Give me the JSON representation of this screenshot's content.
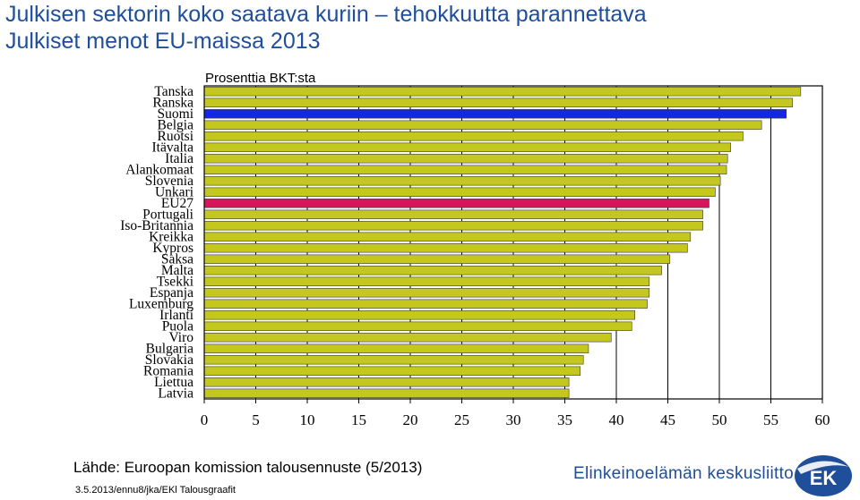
{
  "title_line1": "Julkisen sektorin koko saatava kuriin – tehokkuutta parannettava",
  "title_line2": "Julkiset menot EU-maissa 2013",
  "source": "Lähde: Euroopan komission talousennuste (5/2013)",
  "credit": "3.5.2013/ennu8/jka/EKl Talousgraafit",
  "org_name": "Elinkeinoelämän keskusliitto",
  "logo_text": "EK",
  "colors": {
    "title": "#1f4e9a",
    "bar_default": "#c3c71e",
    "bar_highlight_suomi": "#1427e6",
    "bar_highlight_eu27": "#d9145a",
    "logo": "#1f4e9a"
  },
  "chart_data": {
    "type": "bar",
    "orientation": "horizontal",
    "title": "",
    "subtitle": "Prosenttia BKT:sta",
    "xlabel": "",
    "ylabel": "",
    "xlim": [
      0,
      60
    ],
    "xticks": [
      0,
      5,
      10,
      15,
      20,
      25,
      30,
      35,
      40,
      45,
      50,
      55,
      60
    ],
    "grid": true,
    "categories": [
      "Tanska",
      "Ranska",
      "Suomi",
      "Belgia",
      "Ruotsi",
      "Itävalta",
      "Italia",
      "Alankomaat",
      "Slovenia",
      "Unkari",
      "EU27",
      "Portugali",
      "Iso-Britannia",
      "Kreikka",
      "Kypros",
      "Saksa",
      "Malta",
      "Tsekki",
      "Espanja",
      "Luxemburg",
      "Irlanti",
      "Puola",
      "Viro",
      "Bulgaria",
      "Slovakia",
      "Romania",
      "Liettua",
      "Latvia"
    ],
    "values": [
      57.9,
      57.1,
      56.5,
      54.1,
      52.3,
      51.1,
      50.8,
      50.7,
      50.1,
      49.6,
      49.0,
      48.4,
      48.4,
      47.2,
      46.9,
      45.2,
      44.4,
      43.2,
      43.2,
      43.0,
      41.8,
      41.5,
      39.5,
      37.3,
      36.8,
      36.5,
      35.4,
      35.4
    ],
    "highlight": {
      "Suomi": "bar_highlight_suomi",
      "EU27": "bar_highlight_eu27"
    }
  }
}
